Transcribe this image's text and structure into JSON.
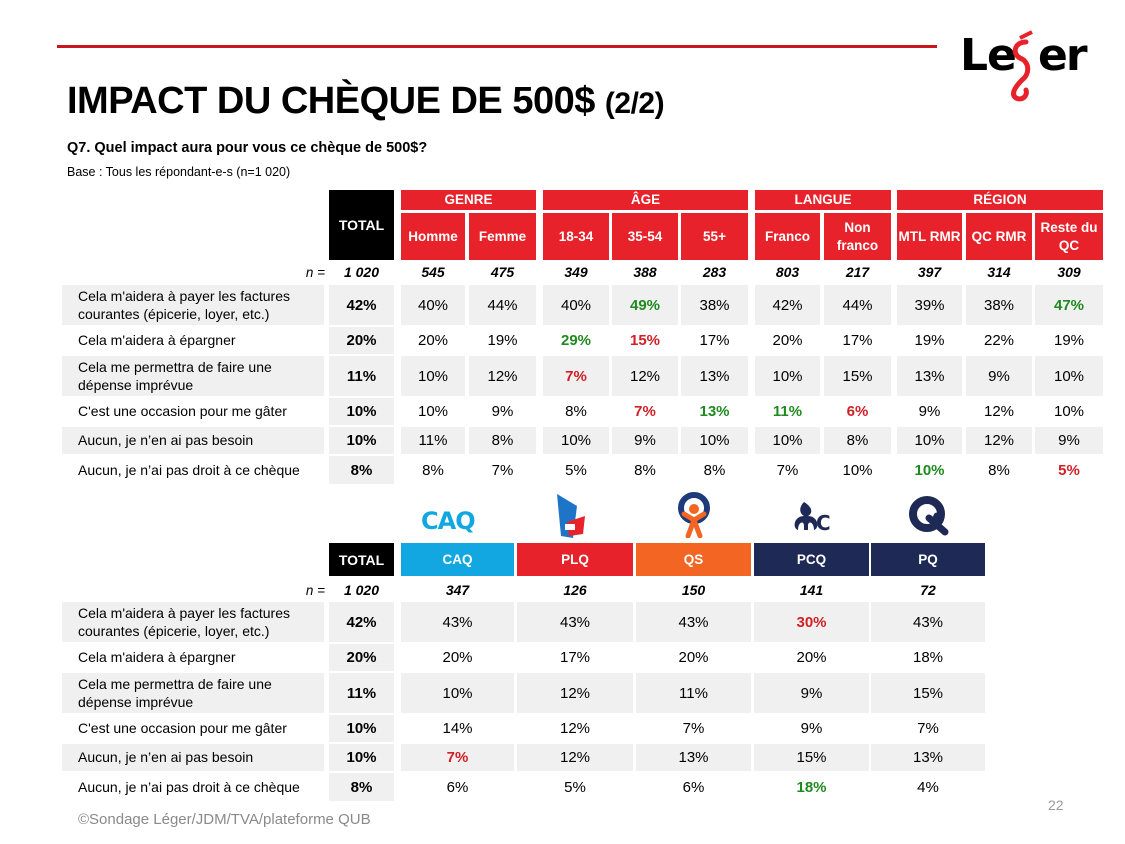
{
  "brand": {
    "logo_text": "Leger",
    "accent_color": "#e8222a",
    "rule_color": "#c8161d"
  },
  "title": {
    "main": "IMPACT DU CHÈQUE DE 500$",
    "part": "(2/2)"
  },
  "question": "Q7. Quel impact aura pour vous ce chèque de 500$?",
  "base": "Base : Tous les répondant-e-s (n=1 020)",
  "n_label": "n =",
  "row_labels": [
    "Cela m'aidera à payer les factures courantes (épicerie, loyer, etc.)",
    "Cela m'aidera à épargner",
    "Cela me permettra de faire une dépense imprévue",
    "C'est une occasion pour me gâter",
    "Aucun, je n’en ai pas besoin",
    "Aucun, je n’ai pas droit à ce chèque"
  ],
  "table1": {
    "total_label": "TOTAL",
    "groups": [
      {
        "label": "GENRE",
        "columns": [
          "Homme",
          "Femme"
        ]
      },
      {
        "label": "ÂGE",
        "columns": [
          "18-34",
          "35-54",
          "55+"
        ]
      },
      {
        "label": "LANGUE",
        "columns": [
          "Franco",
          "Non franco"
        ]
      },
      {
        "label": "RÉGION",
        "columns": [
          "MTL RMR",
          "QC RMR",
          "Reste du QC"
        ]
      }
    ],
    "n": [
      "1 020",
      "545",
      "475",
      "349",
      "388",
      "283",
      "803",
      "217",
      "397",
      "314",
      "309"
    ],
    "rows": [
      {
        "total": "42%",
        "values": [
          "40%",
          "44%",
          "40%",
          "49%",
          "38%",
          "42%",
          "44%",
          "39%",
          "38%",
          "47%"
        ],
        "highlight": [
          "",
          "",
          "",
          "green",
          "",
          "",
          "",
          "",
          "",
          "green"
        ]
      },
      {
        "total": "20%",
        "values": [
          "20%",
          "19%",
          "29%",
          "15%",
          "17%",
          "20%",
          "17%",
          "19%",
          "22%",
          "19%"
        ],
        "highlight": [
          "",
          "",
          "green",
          "red",
          "",
          "",
          "",
          "",
          "",
          ""
        ]
      },
      {
        "total": "11%",
        "values": [
          "10%",
          "12%",
          "7%",
          "12%",
          "13%",
          "10%",
          "15%",
          "13%",
          "9%",
          "10%"
        ],
        "highlight": [
          "",
          "",
          "red",
          "",
          "",
          "",
          "",
          "",
          "",
          ""
        ]
      },
      {
        "total": "10%",
        "values": [
          "10%",
          "9%",
          "8%",
          "7%",
          "13%",
          "11%",
          "6%",
          "9%",
          "12%",
          "10%"
        ],
        "highlight": [
          "",
          "",
          "",
          "red",
          "green",
          "green",
          "red",
          "",
          "",
          ""
        ]
      },
      {
        "total": "10%",
        "values": [
          "11%",
          "8%",
          "10%",
          "9%",
          "10%",
          "10%",
          "8%",
          "10%",
          "12%",
          "9%"
        ],
        "highlight": [
          "",
          "",
          "",
          "",
          "",
          "",
          "",
          "",
          "",
          ""
        ]
      },
      {
        "total": "8%",
        "values": [
          "8%",
          "7%",
          "5%",
          "8%",
          "8%",
          "7%",
          "10%",
          "10%",
          "8%",
          "5%"
        ],
        "highlight": [
          "",
          "",
          "",
          "",
          "",
          "",
          "",
          "green",
          "",
          "red"
        ]
      }
    ]
  },
  "table2": {
    "total_label": "TOTAL",
    "parties": [
      {
        "label": "CAQ",
        "color": "#12a7e0",
        "logo": "caq-logo"
      },
      {
        "label": "PLQ",
        "color": "#e8222a",
        "logo": "plq-logo"
      },
      {
        "label": "QS",
        "color": "#f26522",
        "logo": "qs-logo"
      },
      {
        "label": "PCQ",
        "color": "#1e2a55",
        "logo": "pcq-logo"
      },
      {
        "label": "PQ",
        "color": "#1e2a55",
        "logo": "pq-logo"
      }
    ],
    "logo_texts": {
      "caq": "CAQ",
      "pcq": "C"
    },
    "n": [
      "1 020",
      "347",
      "126",
      "150",
      "141",
      "72"
    ],
    "rows": [
      {
        "total": "42%",
        "values": [
          "43%",
          "43%",
          "43%",
          "30%",
          "43%"
        ],
        "highlight": [
          "",
          "",
          "",
          "red",
          ""
        ]
      },
      {
        "total": "20%",
        "values": [
          "20%",
          "17%",
          "20%",
          "20%",
          "18%"
        ],
        "highlight": [
          "",
          "",
          "",
          "",
          ""
        ]
      },
      {
        "total": "11%",
        "values": [
          "10%",
          "12%",
          "11%",
          "9%",
          "15%"
        ],
        "highlight": [
          "",
          "",
          "",
          "",
          ""
        ]
      },
      {
        "total": "10%",
        "values": [
          "14%",
          "12%",
          "7%",
          "9%",
          "7%"
        ],
        "highlight": [
          "",
          "",
          "",
          "",
          ""
        ]
      },
      {
        "total": "10%",
        "values": [
          "7%",
          "12%",
          "13%",
          "15%",
          "13%"
        ],
        "highlight": [
          "red",
          "",
          "",
          "",
          ""
        ]
      },
      {
        "total": "8%",
        "values": [
          "6%",
          "5%",
          "6%",
          "18%",
          "4%"
        ],
        "highlight": [
          "",
          "",
          "",
          "green",
          ""
        ]
      }
    ]
  },
  "footer": "©Sondage Léger/JDM/TVA/plateforme QUB",
  "page_number": "22"
}
